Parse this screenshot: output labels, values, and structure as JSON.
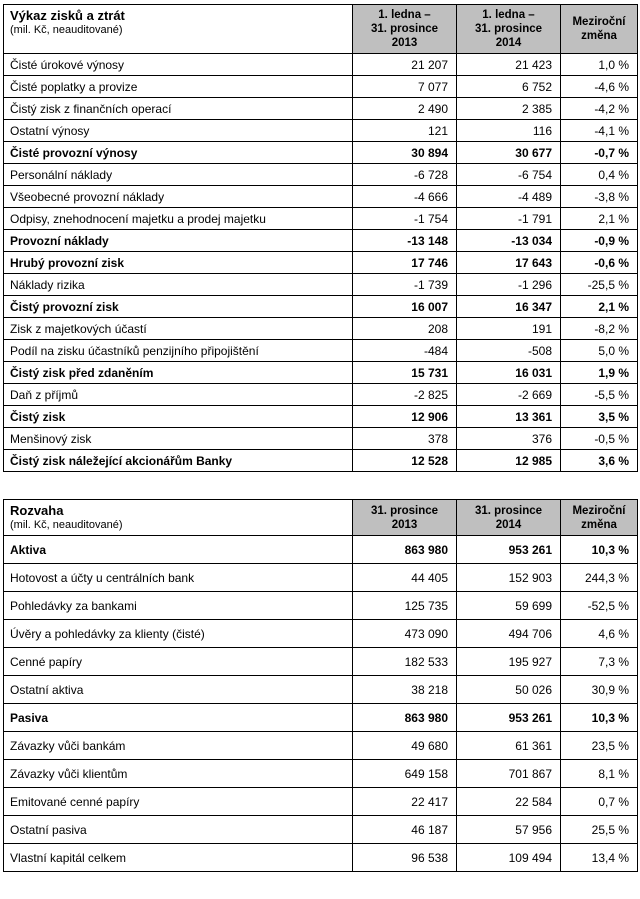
{
  "tables": [
    {
      "title": "Výkaz zisků a ztrát",
      "subtitle": "(mil. Kč, neauditované)",
      "columns": [
        "1. ledna –\n31. prosince\n2013",
        "1. ledna –\n31. prosince\n2014",
        "Meziroční\nzměna"
      ],
      "rows": [
        {
          "label": "Čisté úrokové výnosy",
          "c1": "21 207",
          "c2": "21 423",
          "c3": "1,0 %",
          "bold": false
        },
        {
          "label": "Čisté poplatky a provize",
          "c1": "7 077",
          "c2": "6 752",
          "c3": "-4,6 %",
          "bold": false
        },
        {
          "label": "Čistý zisk z finančních operací",
          "c1": "2 490",
          "c2": "2 385",
          "c3": "-4,2 %",
          "bold": false
        },
        {
          "label": "Ostatní výnosy",
          "c1": "121",
          "c2": "116",
          "c3": "-4,1 %",
          "bold": false
        },
        {
          "label": "Čisté provozní výnosy",
          "c1": "30 894",
          "c2": "30 677",
          "c3": "-0,7 %",
          "bold": true
        },
        {
          "label": "Personální náklady",
          "c1": "-6 728",
          "c2": "-6 754",
          "c3": "0,4 %",
          "bold": false
        },
        {
          "label": "Všeobecné provozní náklady",
          "c1": "-4 666",
          "c2": "-4 489",
          "c3": "-3,8 %",
          "bold": false
        },
        {
          "label": "Odpisy, znehodnocení majetku a prodej majetku",
          "c1": "-1 754",
          "c2": "-1 791",
          "c3": "2,1 %",
          "bold": false
        },
        {
          "label": "Provozní náklady",
          "c1": "-13 148",
          "c2": "-13 034",
          "c3": "-0,9 %",
          "bold": true
        },
        {
          "label": "Hrubý provozní zisk",
          "c1": "17 746",
          "c2": "17 643",
          "c3": "-0,6 %",
          "bold": true
        },
        {
          "label": "Náklady rizika",
          "c1": "-1 739",
          "c2": "-1 296",
          "c3": "-25,5 %",
          "bold": false
        },
        {
          "label": "Čistý provozní zisk",
          "c1": "16 007",
          "c2": "16 347",
          "c3": "2,1 %",
          "bold": true
        },
        {
          "label": "Zisk z majetkových účastí",
          "c1": "208",
          "c2": "191",
          "c3": "-8,2 %",
          "bold": false
        },
        {
          "label": "Podíl na zisku účastníků penzijního připojištění",
          "c1": "-484",
          "c2": "-508",
          "c3": "5,0 %",
          "bold": false
        },
        {
          "label": "Čistý zisk před zdaněním",
          "c1": "15 731",
          "c2": "16 031",
          "c3": "1,9 %",
          "bold": true
        },
        {
          "label": "Daň z příjmů",
          "c1": "-2 825",
          "c2": "-2 669",
          "c3": "-5,5 %",
          "bold": false
        },
        {
          "label": "Čistý zisk",
          "c1": "12 906",
          "c2": "13 361",
          "c3": "3,5 %",
          "bold": true
        },
        {
          "label": "Menšinový zisk",
          "c1": "378",
          "c2": "376",
          "c3": "-0,5 %",
          "bold": false
        },
        {
          "label": "Čistý zisk náležející akcionářům Banky",
          "c1": "12 528",
          "c2": "12 985",
          "c3": "3,6 %",
          "bold": true
        }
      ]
    },
    {
      "title": "Rozvaha",
      "subtitle": "(mil. Kč, neauditované)",
      "columns": [
        "31. prosince\n2013",
        "31. prosince\n2014",
        "Meziroční\nzměna"
      ],
      "rows": [
        {
          "label": "Aktiva",
          "c1": "863 980",
          "c2": "953 261",
          "c3": "10,3 %",
          "bold": true
        },
        {
          "label": "Hotovost a účty u centrálních bank",
          "c1": "44 405",
          "c2": "152 903",
          "c3": "244,3 %",
          "bold": false
        },
        {
          "label": "Pohledávky za bankami",
          "c1": "125 735",
          "c2": "59 699",
          "c3": "-52,5 %",
          "bold": false
        },
        {
          "label": "Úvěry a pohledávky za klienty (čisté)",
          "c1": "473 090",
          "c2": "494 706",
          "c3": "4,6 %",
          "bold": false
        },
        {
          "label": "Cenné papíry",
          "c1": "182 533",
          "c2": "195 927",
          "c3": "7,3 %",
          "bold": false
        },
        {
          "label": "Ostatní aktiva",
          "c1": "38 218",
          "c2": "50 026",
          "c3": "30,9 %",
          "bold": false
        },
        {
          "label": "Pasiva",
          "c1": "863 980",
          "c2": "953 261",
          "c3": "10,3 %",
          "bold": true
        },
        {
          "label": "Závazky vůči bankám",
          "c1": "49 680",
          "c2": "61 361",
          "c3": "23,5 %",
          "bold": false
        },
        {
          "label": "Závazky vůči klientům",
          "c1": "649 158",
          "c2": "701 867",
          "c3": "8,1 %",
          "bold": false
        },
        {
          "label": "Emitované cenné papíry",
          "c1": "22 417",
          "c2": "22 584",
          "c3": "0,7 %",
          "bold": false
        },
        {
          "label": "Ostatní pasiva",
          "c1": "46 187",
          "c2": "57 956",
          "c3": "25,5 %",
          "bold": false
        },
        {
          "label": "Vlastní kapitál celkem",
          "c1": "96 538",
          "c2": "109 494",
          "c3": "13,4 %",
          "bold": false
        }
      ]
    }
  ]
}
